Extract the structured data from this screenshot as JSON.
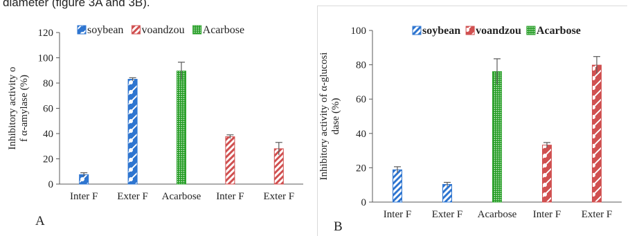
{
  "page": {
    "caption_fragment": "diameter (figure 3A and 3B)."
  },
  "colors": {
    "soybean": "#2e75d0",
    "voandzou": "#d05050",
    "acarbose": "#2aa02a",
    "axis": "#595959",
    "error": "#595959"
  },
  "chart_data": [
    {
      "type": "bar",
      "panel_label": "A",
      "ylabel": "Inhibitory activity of α-amylase (%)",
      "ylim": [
        0,
        120
      ],
      "yticks": [
        0,
        20,
        40,
        60,
        80,
        100,
        120
      ],
      "categories": [
        "Inter F",
        "Exter F",
        "Acarbose",
        "Inter F",
        "Exter F"
      ],
      "legend_position": "top",
      "legend_bold": false,
      "series": [
        {
          "name": "soybean",
          "pattern": "diagonal-dots",
          "values": [
            7.5,
            83,
            null,
            null,
            null
          ],
          "errors": [
            1.5,
            1.2,
            null,
            null,
            null
          ]
        },
        {
          "name": "voandzou",
          "pattern": "diagonal-stripes",
          "values": [
            null,
            null,
            null,
            37.5,
            28
          ],
          "errors": [
            null,
            null,
            null,
            1.5,
            5
          ]
        },
        {
          "name": "Acarbose",
          "pattern": "dots",
          "values": [
            null,
            null,
            89.5,
            null,
            null
          ],
          "errors": [
            null,
            null,
            7,
            null,
            null
          ]
        }
      ]
    },
    {
      "type": "bar",
      "panel_label": "B",
      "ylabel": "Inhibitory activity of α-glucosidase (%)",
      "ylim": [
        0,
        100
      ],
      "yticks": [
        0,
        20,
        40,
        60,
        80,
        100
      ],
      "categories": [
        "Inter F",
        "Exter F",
        "Acarbose",
        "Inter F",
        "Exter F"
      ],
      "legend_position": "top",
      "legend_bold": true,
      "series": [
        {
          "name": "soybean",
          "pattern": "diagonal-stripes",
          "values": [
            18.8,
            10.3,
            null,
            null,
            null
          ],
          "errors": [
            1.8,
            1.2,
            null,
            null,
            null
          ]
        },
        {
          "name": "voandzou",
          "pattern": "diagonal-dots",
          "values": [
            null,
            null,
            null,
            33.2,
            79.8
          ],
          "errors": [
            null,
            null,
            null,
            1.5,
            5
          ]
        },
        {
          "name": "Acarbose",
          "pattern": "dots",
          "values": [
            null,
            null,
            76,
            null,
            null
          ],
          "errors": [
            null,
            null,
            7.5,
            null,
            null
          ]
        }
      ]
    }
  ]
}
